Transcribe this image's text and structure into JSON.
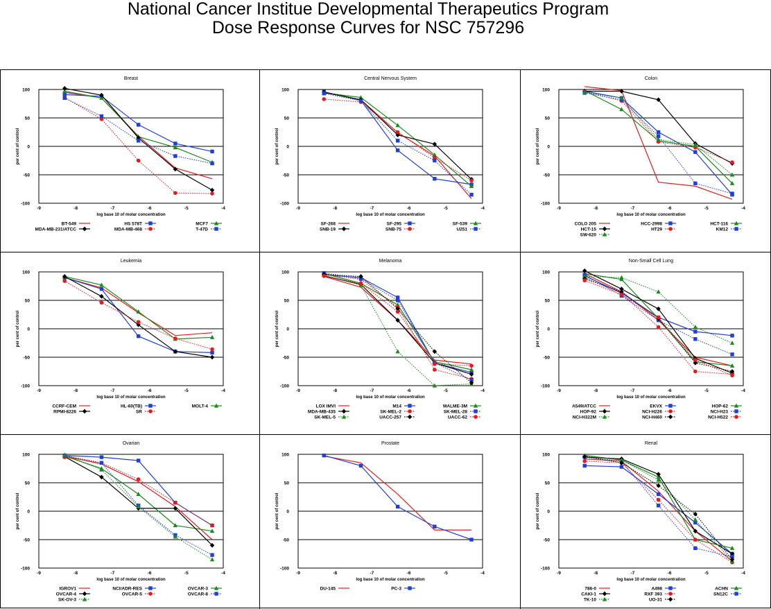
{
  "page": {
    "title_line1": "National Cancer Institue Developmental Therapeutics Program",
    "title_line2": "Dose Response Curves for NSC 757296"
  },
  "chart_data": [
    {
      "type": "line",
      "title": "Breast",
      "xlabel": "log base 10 of molar concentration",
      "ylabel": "per cent of control",
      "xlim": [
        -9,
        -4
      ],
      "ylim": [
        -100,
        100
      ],
      "x": [
        -8.3,
        -7.3,
        -6.3,
        -5.3,
        -4.3
      ],
      "series": [
        {
          "name": "BT-549",
          "color": "#e41a1c",
          "dash": "solid",
          "marker": "none",
          "values": [
            95,
            85,
            18,
            -38,
            -57
          ]
        },
        {
          "name": "HS 578T",
          "color": "#1f3fd6",
          "dash": "solid",
          "marker": "square",
          "values": [
            91,
            88,
            38,
            5,
            -9
          ]
        },
        {
          "name": "MCF7",
          "color": "#1a8a1a",
          "dash": "solid",
          "marker": "triangle",
          "values": [
            97,
            85,
            17,
            -2,
            -28
          ]
        },
        {
          "name": "MDA-MB-231/ATCC",
          "color": "#000000",
          "dash": "solid",
          "marker": "diamond",
          "values": [
            102,
            90,
            15,
            -40,
            -77
          ]
        },
        {
          "name": "MDA-MB-468",
          "color": "#e41a1c",
          "dash": "dotted",
          "marker": "circle",
          "values": [
            86,
            48,
            -25,
            -82,
            -83
          ]
        },
        {
          "name": "T-47D",
          "color": "#1f3fd6",
          "dash": "dotted",
          "marker": "square",
          "values": [
            85,
            53,
            10,
            -17,
            -30
          ]
        }
      ]
    },
    {
      "type": "line",
      "title": "Central Nervous System",
      "xlabel": "log base 10 of molar concentration",
      "ylabel": "per cent of control",
      "xlim": [
        -9,
        -4
      ],
      "ylim": [
        -100,
        100
      ],
      "x": [
        -8.3,
        -7.3,
        -6.3,
        -5.3,
        -4.3
      ],
      "series": [
        {
          "name": "SF-268",
          "color": "#e41a1c",
          "dash": "solid",
          "marker": "none",
          "values": [
            95,
            82,
            24,
            -17,
            -92
          ]
        },
        {
          "name": "SF-295",
          "color": "#1f3fd6",
          "dash": "solid",
          "marker": "square",
          "values": [
            96,
            81,
            -7,
            -57,
            -67
          ]
        },
        {
          "name": "SF-539",
          "color": "#1a8a1a",
          "dash": "solid",
          "marker": "triangle",
          "values": [
            94,
            86,
            37,
            -15,
            -70
          ]
        },
        {
          "name": "SNB-19",
          "color": "#000000",
          "dash": "solid",
          "marker": "diamond",
          "values": [
            95,
            82,
            20,
            4,
            -58
          ]
        },
        {
          "name": "SNB-75",
          "color": "#e41a1c",
          "dash": "dotted",
          "marker": "circle",
          "values": [
            83,
            78,
            25,
            -20,
            -60
          ]
        },
        {
          "name": "U251",
          "color": "#1f3fd6",
          "dash": "dotted",
          "marker": "square",
          "values": [
            93,
            80,
            10,
            -25,
            -85
          ]
        }
      ]
    },
    {
      "type": "line",
      "title": "Colon",
      "xlabel": "log base 10 of molar concentration",
      "ylabel": "per cent of control",
      "xlim": [
        -9,
        -4
      ],
      "ylim": [
        -100,
        100
      ],
      "x": [
        -8.3,
        -7.3,
        -6.3,
        -5.3,
        -4.3
      ],
      "series": [
        {
          "name": "COLO 205",
          "color": "#e41a1c",
          "dash": "solid",
          "marker": "none",
          "values": [
            105,
            98,
            -63,
            -70,
            -93
          ]
        },
        {
          "name": "HCC-2998",
          "color": "#1f3fd6",
          "dash": "solid",
          "marker": "square",
          "values": [
            97,
            85,
            25,
            -10,
            -85
          ]
        },
        {
          "name": "HCT-116",
          "color": "#1a8a1a",
          "dash": "solid",
          "marker": "triangle",
          "values": [
            98,
            65,
            10,
            0,
            -65
          ]
        },
        {
          "name": "HCT-15",
          "color": "#000000",
          "dash": "solid",
          "marker": "diamond",
          "values": [
            97,
            97,
            82,
            5,
            -30
          ]
        },
        {
          "name": "HT29",
          "color": "#e41a1c",
          "dash": "dotted",
          "marker": "circle",
          "values": [
            96,
            80,
            8,
            -2,
            -28
          ]
        },
        {
          "name": "KM12",
          "color": "#1f3fd6",
          "dash": "dotted",
          "marker": "square",
          "values": [
            94,
            82,
            18,
            -65,
            -83
          ]
        },
        {
          "name": "SW-620",
          "color": "#1a8a1a",
          "dash": "dotted",
          "marker": "triangle",
          "values": [
            95,
            85,
            12,
            3,
            -50
          ]
        }
      ]
    },
    {
      "type": "line",
      "title": "Leukemia",
      "xlabel": "log base 10 of molar concentration",
      "ylabel": "per cent of control",
      "xlim": [
        -9,
        -4
      ],
      "ylim": [
        -100,
        100
      ],
      "x": [
        -8.3,
        -7.3,
        -6.3,
        -5.3,
        -4.3
      ],
      "series": [
        {
          "name": "CCRF-CEM",
          "color": "#e41a1c",
          "dash": "solid",
          "marker": "none",
          "values": [
            90,
            72,
            28,
            -12,
            -7
          ]
        },
        {
          "name": "HL-60(TB)",
          "color": "#1f3fd6",
          "dash": "solid",
          "marker": "square",
          "values": [
            90,
            70,
            -13,
            -40,
            -42
          ]
        },
        {
          "name": "MOLT-4",
          "color": "#1a8a1a",
          "dash": "solid",
          "marker": "triangle",
          "values": [
            92,
            77,
            30,
            -18,
            -15
          ]
        },
        {
          "name": "RPMI-8226",
          "color": "#000000",
          "dash": "solid",
          "marker": "diamond",
          "values": [
            92,
            57,
            7,
            -40,
            -50
          ]
        },
        {
          "name": "SR",
          "color": "#e41a1c",
          "dash": "dotted",
          "marker": "circle",
          "values": [
            84,
            46,
            12,
            -17,
            -36
          ]
        }
      ]
    },
    {
      "type": "line",
      "title": "Melanoma",
      "xlabel": "log base 10 of molar concentration",
      "ylabel": "per cent of control",
      "xlim": [
        -9,
        -4
      ],
      "ylim": [
        -100,
        100
      ],
      "x": [
        -8.3,
        -7.3,
        -6.3,
        -5.3,
        -4.3
      ],
      "series": [
        {
          "name": "LOX IMVI",
          "color": "#e41a1c",
          "dash": "solid",
          "marker": "none",
          "values": [
            92,
            73,
            15,
            -55,
            -62
          ]
        },
        {
          "name": "M14",
          "color": "#1f3fd6",
          "dash": "solid",
          "marker": "square",
          "values": [
            95,
            90,
            55,
            -60,
            -77
          ]
        },
        {
          "name": "MALME-3M",
          "color": "#1a8a1a",
          "dash": "solid",
          "marker": "triangle",
          "values": [
            97,
            80,
            42,
            -58,
            -72
          ]
        },
        {
          "name": "MDA-MB-435",
          "color": "#000000",
          "dash": "solid",
          "marker": "diamond",
          "values": [
            93,
            78,
            15,
            -60,
            -80
          ]
        },
        {
          "name": "SK-MEL-2",
          "color": "#e41a1c",
          "dash": "dotted",
          "marker": "circle",
          "values": [
            95,
            87,
            38,
            -72,
            -88
          ]
        },
        {
          "name": "SK-MEL-28",
          "color": "#1f3fd6",
          "dash": "dotted",
          "marker": "square",
          "values": [
            98,
            88,
            50,
            -60,
            -90
          ]
        },
        {
          "name": "SK-MEL-5",
          "color": "#1a8a1a",
          "dash": "dotted",
          "marker": "triangle",
          "values": [
            94,
            77,
            -40,
            -100,
            -97
          ]
        },
        {
          "name": "UACC-257",
          "color": "#000000",
          "dash": "dotted",
          "marker": "diamond",
          "values": [
            96,
            92,
            35,
            -40,
            -95
          ]
        },
        {
          "name": "UACC-62",
          "color": "#e41a1c",
          "dash": "dotted",
          "marker": "circle",
          "values": [
            93,
            80,
            30,
            -62,
            -65
          ]
        }
      ]
    },
    {
      "type": "line",
      "title": "Non-Small Cell Lung",
      "xlabel": "log base 10 of molar concentration",
      "ylabel": "per cent of control",
      "xlim": [
        -9,
        -4
      ],
      "ylim": [
        -100,
        100
      ],
      "x": [
        -8.3,
        -7.3,
        -6.3,
        -5.3,
        -4.3
      ],
      "series": [
        {
          "name": "A549/ATCC",
          "color": "#e41a1c",
          "dash": "solid",
          "marker": "none",
          "values": [
            97,
            65,
            15,
            -50,
            -65
          ]
        },
        {
          "name": "EKVX",
          "color": "#1f3fd6",
          "dash": "solid",
          "marker": "square",
          "values": [
            93,
            63,
            20,
            -5,
            -12
          ]
        },
        {
          "name": "HOP-62",
          "color": "#1a8a1a",
          "dash": "solid",
          "marker": "triangle",
          "values": [
            97,
            87,
            18,
            -58,
            -65
          ]
        },
        {
          "name": "HOP-92",
          "color": "#000000",
          "dash": "solid",
          "marker": "diamond",
          "values": [
            102,
            70,
            35,
            -52,
            -78
          ]
        },
        {
          "name": "NCI-H226",
          "color": "#e41a1c",
          "dash": "dotted",
          "marker": "circle",
          "values": [
            90,
            62,
            3,
            -75,
            -80
          ]
        },
        {
          "name": "NCI-H23",
          "color": "#1f3fd6",
          "dash": "dotted",
          "marker": "square",
          "values": [
            95,
            58,
            15,
            -18,
            -45
          ]
        },
        {
          "name": "NCI-H322M",
          "color": "#1a8a1a",
          "dash": "dotted",
          "marker": "triangle",
          "values": [
            92,
            90,
            65,
            3,
            -25
          ]
        },
        {
          "name": "NCI-H460",
          "color": "#000000",
          "dash": "dotted",
          "marker": "diamond",
          "values": [
            88,
            65,
            18,
            -60,
            -75
          ]
        },
        {
          "name": "NCI-H522",
          "color": "#e41a1c",
          "dash": "dotted",
          "marker": "circle",
          "values": [
            85,
            60,
            20,
            -55,
            -82
          ]
        }
      ]
    },
    {
      "type": "line",
      "title": "Ovarian",
      "xlabel": "log base 10 of molar concentration",
      "ylabel": "per cent of control",
      "xlim": [
        -9,
        -4
      ],
      "ylim": [
        -100,
        100
      ],
      "x": [
        -8.3,
        -7.3,
        -6.3,
        -5.3,
        -4.3
      ],
      "series": [
        {
          "name": "IGROV1",
          "color": "#e41a1c",
          "dash": "solid",
          "marker": "none",
          "values": [
            97,
            83,
            52,
            8,
            -50
          ]
        },
        {
          "name": "NCI/ADR-RES",
          "color": "#1f3fd6",
          "dash": "solid",
          "marker": "square",
          "values": [
            98,
            95,
            89,
            15,
            -25
          ]
        },
        {
          "name": "OVCAR-3",
          "color": "#1a8a1a",
          "dash": "solid",
          "marker": "triangle",
          "values": [
            97,
            75,
            30,
            -25,
            -35
          ]
        },
        {
          "name": "OVCAR-4",
          "color": "#000000",
          "dash": "solid",
          "marker": "diamond",
          "values": [
            96,
            60,
            5,
            5,
            -60
          ]
        },
        {
          "name": "OVCAR-5",
          "color": "#e41a1c",
          "dash": "dotted",
          "marker": "circle",
          "values": [
            95,
            85,
            56,
            15,
            -25
          ]
        },
        {
          "name": "OVCAR-8",
          "color": "#1f3fd6",
          "dash": "dotted",
          "marker": "square",
          "values": [
            98,
            85,
            10,
            -42,
            -77
          ]
        },
        {
          "name": "SK-OV-3",
          "color": "#1a8a1a",
          "dash": "dotted",
          "marker": "triangle",
          "values": [
            99,
            73,
            8,
            -45,
            -85
          ]
        }
      ]
    },
    {
      "type": "line",
      "title": "Prostate",
      "xlabel": "log base 10 of molar concentration",
      "ylabel": "per cent of control",
      "xlim": [
        -9,
        -4
      ],
      "ylim": [
        -100,
        100
      ],
      "x": [
        -8.3,
        -7.3,
        -6.3,
        -5.3,
        -4.3
      ],
      "series": [
        {
          "name": "DU-145",
          "color": "#e41a1c",
          "dash": "solid",
          "marker": "none",
          "values": [
            97,
            85,
            30,
            -33,
            -33
          ]
        },
        {
          "name": "PC-3",
          "color": "#1f3fd6",
          "dash": "solid",
          "marker": "square",
          "values": [
            98,
            80,
            8,
            -27,
            -50
          ]
        }
      ]
    },
    {
      "type": "line",
      "title": "Renal",
      "xlabel": "log base 10 of molar concentration",
      "ylabel": "per cent of control",
      "xlim": [
        -9,
        -4
      ],
      "ylim": [
        -100,
        100
      ],
      "x": [
        -8.3,
        -7.3,
        -6.3,
        -5.3,
        -4.3
      ],
      "series": [
        {
          "name": "786-0",
          "color": "#e41a1c",
          "dash": "solid",
          "marker": "none",
          "values": [
            92,
            88,
            35,
            -35,
            -88
          ]
        },
        {
          "name": "A498",
          "color": "#1f3fd6",
          "dash": "solid",
          "marker": "square",
          "values": [
            80,
            78,
            30,
            -20,
            -75
          ]
        },
        {
          "name": "ACHN",
          "color": "#1a8a1a",
          "dash": "solid",
          "marker": "triangle",
          "values": [
            98,
            90,
            60,
            -50,
            -65
          ]
        },
        {
          "name": "CAKI-1",
          "color": "#000000",
          "dash": "solid",
          "marker": "diamond",
          "values": [
            95,
            92,
            65,
            -35,
            -75
          ]
        },
        {
          "name": "RXF 393",
          "color": "#e41a1c",
          "dash": "dotted",
          "marker": "circle",
          "values": [
            88,
            85,
            20,
            -50,
            -90
          ]
        },
        {
          "name": "SN12C",
          "color": "#1f3fd6",
          "dash": "dotted",
          "marker": "square",
          "values": [
            95,
            88,
            10,
            -65,
            -80
          ]
        },
        {
          "name": "TK-10",
          "color": "#1a8a1a",
          "dash": "dotted",
          "marker": "triangle",
          "values": [
            97,
            90,
            55,
            -15,
            -88
          ]
        },
        {
          "name": "UO-31",
          "color": "#000000",
          "dash": "dotted",
          "marker": "diamond",
          "values": [
            96,
            85,
            45,
            -5,
            -85
          ]
        }
      ]
    }
  ]
}
